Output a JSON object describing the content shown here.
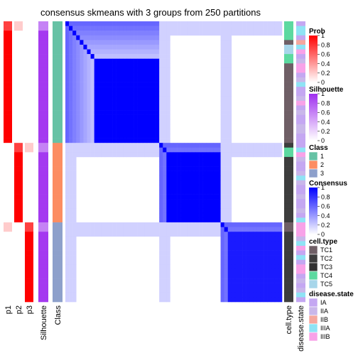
{
  "chart_data": {
    "type": "heatmap",
    "title": "consensus skmeans with 3 groups from 250 partitions",
    "n_samples": 60,
    "class_groups": [
      {
        "class": 1,
        "count": 26
      },
      {
        "class": 2,
        "count": 17
      },
      {
        "class": 3,
        "count": 17
      }
    ],
    "consensus_blocks": [
      {
        "class": 1,
        "within_consensus": 1.0,
        "core_start": 8
      },
      {
        "class": 2,
        "within_consensus": 1.0,
        "core_start": 2
      },
      {
        "class": 3,
        "within_consensus": 0.9,
        "core_start": 2
      }
    ],
    "left_tracks": [
      "p1",
      "p2",
      "p3",
      "Silhouette",
      "Class"
    ],
    "right_tracks": [
      "cell.type",
      "disease.state"
    ],
    "legends": [
      {
        "title": "Prob",
        "type": "continuous",
        "ticks": [
          "1",
          "0.8",
          "0.6",
          "0.4",
          "0.2",
          "0"
        ],
        "low": "#ffffff",
        "high": "#ff0000"
      },
      {
        "title": "Silhouette",
        "type": "continuous",
        "ticks": [
          "1",
          "0.8",
          "0.6",
          "0.4",
          "0.2",
          "0"
        ],
        "low": "#ffffff",
        "high": "#9f2fef"
      },
      {
        "title": "Class",
        "type": "discrete",
        "items": [
          {
            "label": "1",
            "color": "#66c2a5"
          },
          {
            "label": "2",
            "color": "#fc8d62"
          },
          {
            "label": "3",
            "color": "#8da0cb"
          }
        ]
      },
      {
        "title": "Consensus",
        "type": "continuous",
        "ticks": [
          "1",
          "0.8",
          "0.6",
          "0.4",
          "0.2",
          "0"
        ],
        "low": "#ffffff",
        "high": "#0000ff"
      },
      {
        "title": "cell.type",
        "type": "discrete",
        "items": [
          {
            "label": "TC1",
            "color": "#6f5f66"
          },
          {
            "label": "TC2",
            "color": "#3d3d3d"
          },
          {
            "label": "TC3",
            "color": "#333333"
          },
          {
            "label": "TC4",
            "color": "#5cd9a0"
          },
          {
            "label": "TC5",
            "color": "#a7d6ea"
          }
        ]
      },
      {
        "title": "disease.state",
        "type": "discrete",
        "items": [
          {
            "label": "IA",
            "color": "#c4a7f2"
          },
          {
            "label": "IIA",
            "color": "#c9b7ea"
          },
          {
            "label": "IIB",
            "color": "#f5a79e"
          },
          {
            "label": "IIIA",
            "color": "#8fe3f5"
          },
          {
            "label": "IIIB",
            "color": "#f8a2e8"
          }
        ]
      }
    ],
    "legend_placement": "right"
  }
}
